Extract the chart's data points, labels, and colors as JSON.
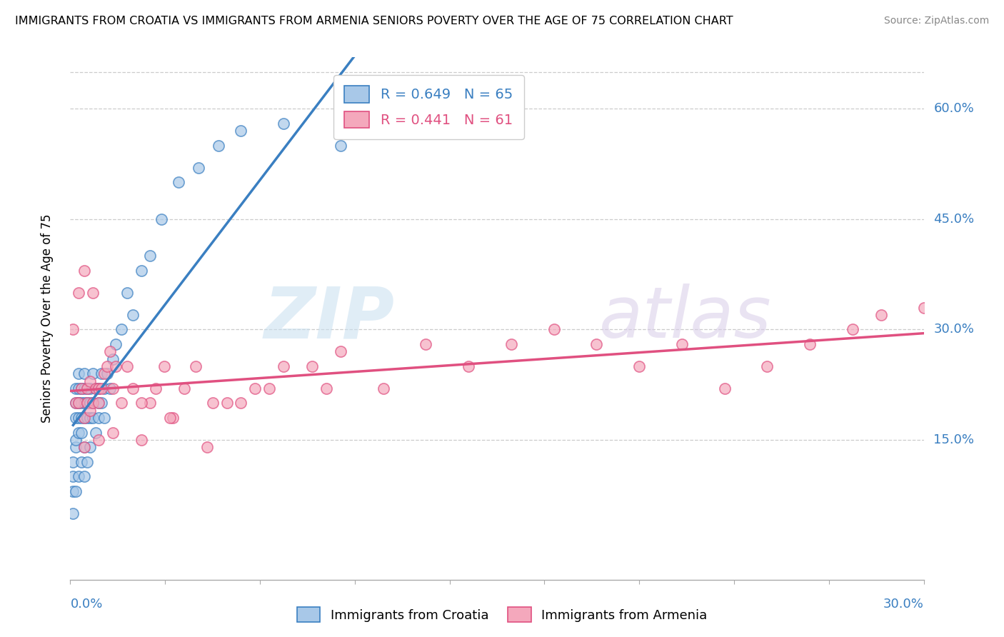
{
  "title": "IMMIGRANTS FROM CROATIA VS IMMIGRANTS FROM ARMENIA SENIORS POVERTY OVER THE AGE OF 75 CORRELATION CHART",
  "source": "Source: ZipAtlas.com",
  "ylabel": "Seniors Poverty Over the Age of 75",
  "xlim": [
    0.0,
    0.3
  ],
  "ylim": [
    -0.04,
    0.67
  ],
  "yticks": [
    0.0,
    0.15,
    0.3,
    0.45,
    0.6
  ],
  "ytick_labels": [
    "",
    "15.0%",
    "30.0%",
    "45.0%",
    "60.0%"
  ],
  "croatia_color": "#a8c8e8",
  "armenia_color": "#f4a8bc",
  "croatia_line_color": "#3a7fc1",
  "armenia_line_color": "#e05080",
  "croatia_R": 0.649,
  "croatia_N": 65,
  "armenia_R": 0.441,
  "armenia_N": 61,
  "legend_label_croatia": "Immigrants from Croatia",
  "legend_label_armenia": "Immigrants from Armenia",
  "croatia_x": [
    0.001,
    0.001,
    0.001,
    0.001,
    0.002,
    0.002,
    0.002,
    0.002,
    0.002,
    0.002,
    0.003,
    0.003,
    0.003,
    0.003,
    0.003,
    0.003,
    0.003,
    0.004,
    0.004,
    0.004,
    0.004,
    0.004,
    0.005,
    0.005,
    0.005,
    0.005,
    0.005,
    0.005,
    0.006,
    0.006,
    0.006,
    0.006,
    0.007,
    0.007,
    0.007,
    0.007,
    0.008,
    0.008,
    0.008,
    0.009,
    0.009,
    0.01,
    0.01,
    0.01,
    0.011,
    0.011,
    0.012,
    0.012,
    0.013,
    0.014,
    0.015,
    0.016,
    0.018,
    0.02,
    0.022,
    0.025,
    0.028,
    0.032,
    0.038,
    0.045,
    0.052,
    0.06,
    0.075,
    0.095,
    0.13
  ],
  "croatia_y": [
    0.05,
    0.1,
    0.12,
    0.08,
    0.18,
    0.2,
    0.14,
    0.22,
    0.08,
    0.15,
    0.2,
    0.22,
    0.18,
    0.2,
    0.16,
    0.24,
    0.1,
    0.18,
    0.2,
    0.22,
    0.12,
    0.16,
    0.2,
    0.18,
    0.22,
    0.14,
    0.24,
    0.1,
    0.2,
    0.18,
    0.22,
    0.12,
    0.2,
    0.22,
    0.18,
    0.14,
    0.2,
    0.24,
    0.18,
    0.22,
    0.16,
    0.2,
    0.22,
    0.18,
    0.24,
    0.2,
    0.22,
    0.18,
    0.24,
    0.22,
    0.26,
    0.28,
    0.3,
    0.35,
    0.32,
    0.38,
    0.4,
    0.45,
    0.5,
    0.52,
    0.55,
    0.57,
    0.58,
    0.55,
    0.62
  ],
  "armenia_x": [
    0.001,
    0.002,
    0.003,
    0.003,
    0.004,
    0.005,
    0.005,
    0.006,
    0.006,
    0.007,
    0.007,
    0.008,
    0.008,
    0.009,
    0.01,
    0.01,
    0.011,
    0.012,
    0.013,
    0.014,
    0.015,
    0.016,
    0.018,
    0.02,
    0.022,
    0.025,
    0.028,
    0.03,
    0.033,
    0.036,
    0.04,
    0.044,
    0.048,
    0.055,
    0.06,
    0.065,
    0.075,
    0.085,
    0.095,
    0.11,
    0.125,
    0.14,
    0.155,
    0.17,
    0.185,
    0.2,
    0.215,
    0.23,
    0.245,
    0.26,
    0.275,
    0.285,
    0.005,
    0.015,
    0.025,
    0.035,
    0.05,
    0.07,
    0.09,
    0.3,
    0.01
  ],
  "armenia_y": [
    0.3,
    0.2,
    0.35,
    0.2,
    0.22,
    0.18,
    0.38,
    0.22,
    0.2,
    0.19,
    0.23,
    0.2,
    0.35,
    0.22,
    0.2,
    0.22,
    0.22,
    0.24,
    0.25,
    0.27,
    0.22,
    0.25,
    0.2,
    0.25,
    0.22,
    0.15,
    0.2,
    0.22,
    0.25,
    0.18,
    0.22,
    0.25,
    0.14,
    0.2,
    0.2,
    0.22,
    0.25,
    0.25,
    0.27,
    0.22,
    0.28,
    0.25,
    0.28,
    0.3,
    0.28,
    0.25,
    0.28,
    0.22,
    0.25,
    0.28,
    0.3,
    0.32,
    0.14,
    0.16,
    0.2,
    0.18,
    0.2,
    0.22,
    0.22,
    0.33,
    0.15
  ]
}
